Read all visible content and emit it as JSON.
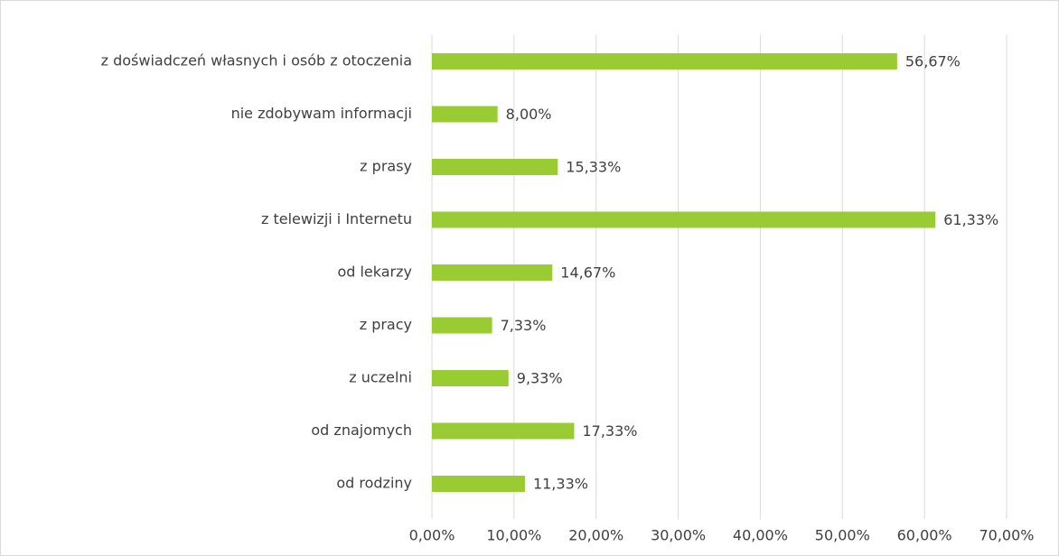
{
  "chart_data": {
    "type": "bar",
    "orientation": "horizontal",
    "categories": [
      "z doświadczeń własnych i osób z otoczenia",
      "nie zdobywam informacji",
      "z prasy",
      "z telewizji i Internetu",
      "od lekarzy",
      "z pracy",
      "z uczelni",
      "od znajomych",
      "od rodziny"
    ],
    "values": [
      56.67,
      8.0,
      15.33,
      61.33,
      14.67,
      7.33,
      9.33,
      17.33,
      11.33
    ],
    "value_labels": [
      "56,67%",
      "8,00%",
      "15,33%",
      "61,33%",
      "14,67%",
      "7,33%",
      "9,33%",
      "17,33%",
      "11,33%"
    ],
    "color": "#99cc33",
    "xlim": [
      0,
      70
    ],
    "xticks": [
      {
        "value": 0,
        "label": "0,00%"
      },
      {
        "value": 10,
        "label": "10,00%"
      },
      {
        "value": 20,
        "label": "20,00%"
      },
      {
        "value": 30,
        "label": "30,00%"
      },
      {
        "value": 40,
        "label": "40,00%"
      },
      {
        "value": 50,
        "label": "50,00%"
      },
      {
        "value": 60,
        "label": "60,00%"
      },
      {
        "value": 70,
        "label": "70,00%"
      }
    ],
    "grid": true
  }
}
